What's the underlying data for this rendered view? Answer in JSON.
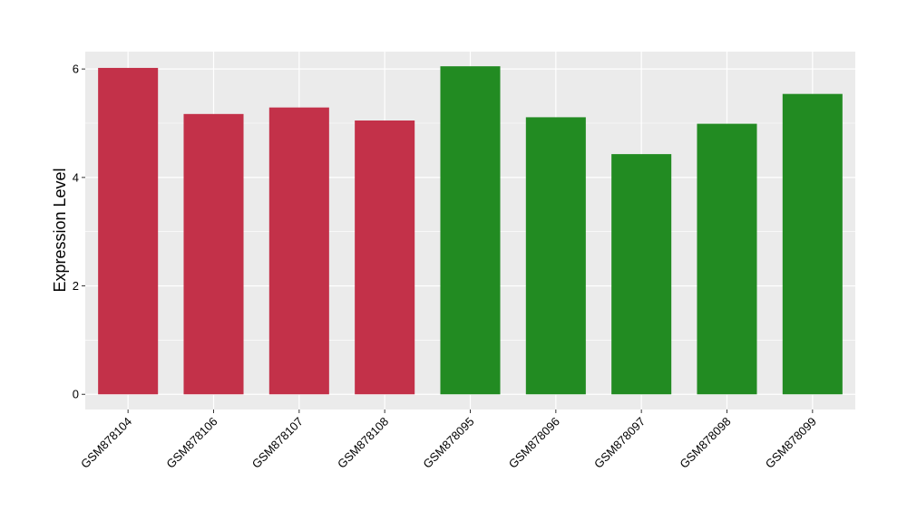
{
  "chart_data": {
    "type": "bar",
    "title": "",
    "xlabel": "",
    "ylabel": "Expression Level",
    "ylim": [
      -0.28,
      6.32
    ],
    "yticks": [
      0,
      2,
      4,
      6
    ],
    "grid": true,
    "legend": "none",
    "categories": [
      "GSM878104",
      "GSM878106",
      "GSM878107",
      "GSM878108",
      "GSM878095",
      "GSM878096",
      "GSM878097",
      "GSM878098",
      "GSM878099"
    ],
    "values": [
      6.02,
      5.17,
      5.29,
      5.05,
      6.05,
      5.11,
      4.43,
      4.99,
      5.54
    ],
    "bar_colors": [
      "#C33149",
      "#C33149",
      "#C33149",
      "#C33149",
      "#228B22",
      "#228B22",
      "#228B22",
      "#228B22",
      "#228B22"
    ],
    "panel_background": "#EBEBEB",
    "grid_color": "#FFFFFF"
  }
}
